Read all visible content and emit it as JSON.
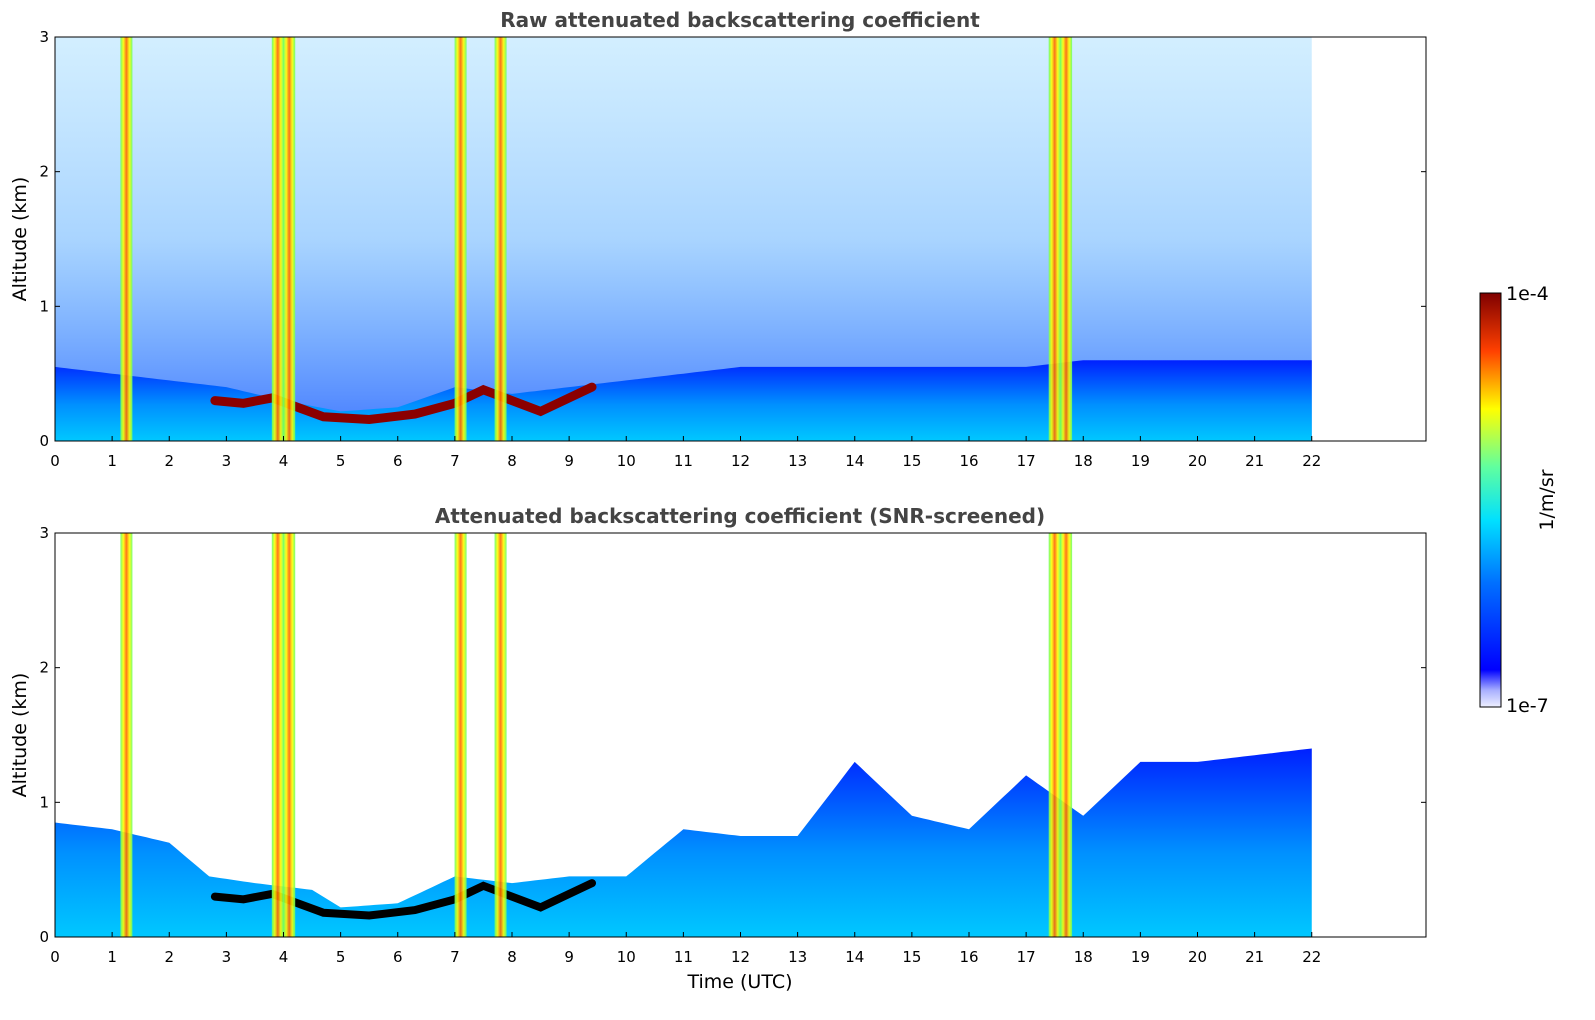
{
  "chart_data": [
    {
      "type": "heatmap",
      "title": "Raw attenuated backscattering coefficient",
      "xlabel": "",
      "ylabel": "Altitude (km)",
      "xlim": [
        0,
        24
      ],
      "ylim": [
        0,
        3
      ],
      "x_ticks": [
        "0",
        "1",
        "2",
        "3",
        "4",
        "5",
        "6",
        "7",
        "8",
        "9",
        "10",
        "11",
        "12",
        "13",
        "14",
        "15",
        "16",
        "17",
        "18",
        "19",
        "20",
        "21",
        "22"
      ],
      "y_ticks": [
        "0",
        "1",
        "2",
        "3"
      ],
      "data_extent_x": [
        0,
        22
      ],
      "features": {
        "boundary_layer_top_km": [
          [
            0,
            0.55
          ],
          [
            1,
            0.5
          ],
          [
            2,
            0.45
          ],
          [
            3,
            0.4
          ],
          [
            4,
            0.3
          ],
          [
            5,
            0.22
          ],
          [
            6,
            0.25
          ],
          [
            7,
            0.4
          ],
          [
            8,
            0.35
          ],
          [
            9,
            0.4
          ],
          [
            10,
            0.45
          ],
          [
            11,
            0.5
          ],
          [
            12,
            0.55
          ],
          [
            13,
            0.55
          ],
          [
            14,
            0.55
          ],
          [
            15,
            0.55
          ],
          [
            16,
            0.55
          ],
          [
            17,
            0.55
          ],
          [
            18,
            0.6
          ],
          [
            19,
            0.6
          ],
          [
            20,
            0.6
          ],
          [
            21,
            0.6
          ],
          [
            22,
            0.6
          ]
        ],
        "aerosol_layer_km": [
          [
            2.8,
            0.3
          ],
          [
            3.3,
            0.28
          ],
          [
            3.8,
            0.32
          ],
          [
            4.7,
            0.18
          ],
          [
            5.5,
            0.16
          ],
          [
            6.3,
            0.2
          ],
          [
            7.0,
            0.28
          ],
          [
            7.5,
            0.38
          ],
          [
            8.5,
            0.22
          ],
          [
            9.4,
            0.4
          ]
        ],
        "vertical_bands_utc": [
          1.25,
          3.9,
          4.1,
          7.1,
          7.8,
          17.5,
          17.7
        ]
      }
    },
    {
      "type": "heatmap",
      "title": "Attenuated backscattering coefficient (SNR-screened)",
      "xlabel": "Time (UTC)",
      "ylabel": "Altitude (km)",
      "xlim": [
        0,
        24
      ],
      "ylim": [
        0,
        3
      ],
      "x_ticks": [
        "0",
        "1",
        "2",
        "3",
        "4",
        "5",
        "6",
        "7",
        "8",
        "9",
        "10",
        "11",
        "12",
        "13",
        "14",
        "15",
        "16",
        "17",
        "18",
        "19",
        "20",
        "21",
        "22"
      ],
      "y_ticks": [
        "0",
        "1",
        "2",
        "3"
      ],
      "data_extent_x": [
        0,
        22
      ],
      "features": {
        "screened_top_km": [
          [
            0,
            0.85
          ],
          [
            1,
            0.8
          ],
          [
            2,
            0.7
          ],
          [
            2.7,
            0.45
          ],
          [
            3.5,
            0.4
          ],
          [
            4.5,
            0.35
          ],
          [
            5,
            0.22
          ],
          [
            6,
            0.25
          ],
          [
            7,
            0.45
          ],
          [
            8,
            0.4
          ],
          [
            9,
            0.45
          ],
          [
            10,
            0.45
          ],
          [
            11,
            0.8
          ],
          [
            12,
            0.75
          ],
          [
            13,
            0.75
          ],
          [
            14,
            1.3
          ],
          [
            15,
            0.9
          ],
          [
            16,
            0.8
          ],
          [
            17,
            1.2
          ],
          [
            18,
            0.9
          ],
          [
            19,
            1.3
          ],
          [
            20,
            1.3
          ],
          [
            21,
            1.35
          ],
          [
            22,
            1.4
          ]
        ]
      }
    }
  ],
  "colorbar": {
    "label": "1/m/sr",
    "max_label": "1e-4",
    "min_label": "1e-7",
    "colormap": "jet"
  },
  "colors": {
    "title": "#444444",
    "layer": "#8b0000",
    "screened_layer": "#000000"
  }
}
